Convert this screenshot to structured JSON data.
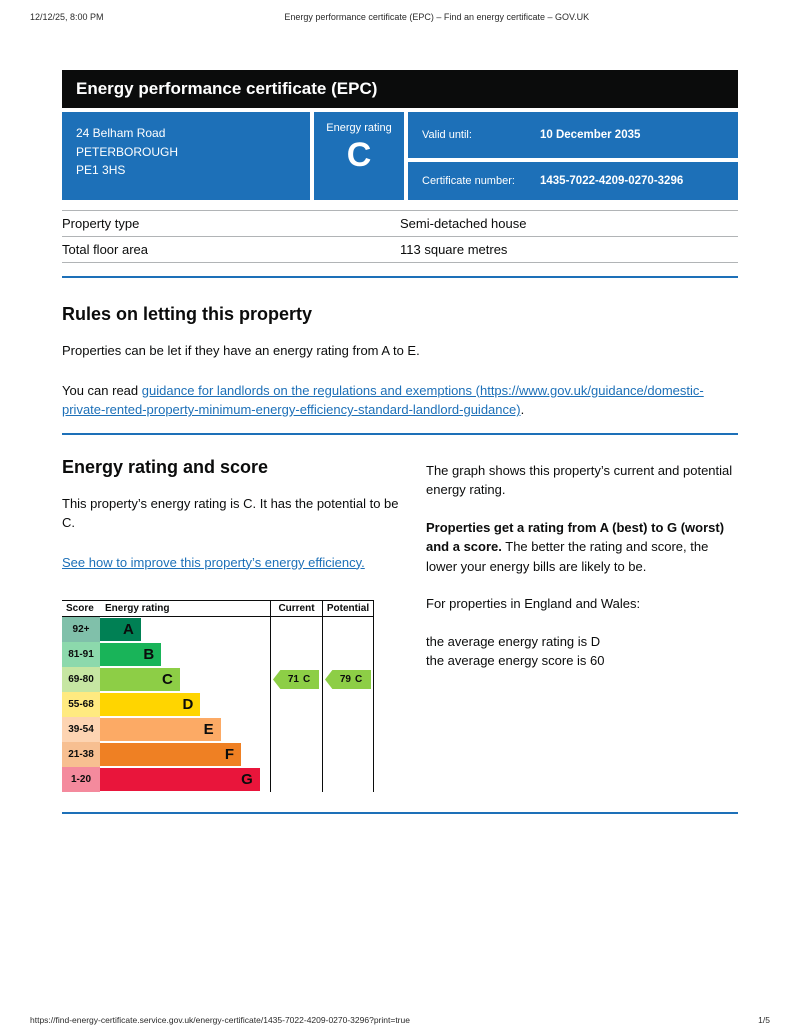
{
  "print_header": {
    "datetime": "12/12/25, 8:00 PM",
    "title": "Energy performance certificate (EPC) – Find an energy certificate – GOV.UK"
  },
  "banner": {
    "title": "Energy performance certificate (EPC)"
  },
  "summary": {
    "accent_color": "#1d70b8",
    "address_lines": [
      "24 Belham Road",
      "PETERBOROUGH",
      "PE1 3HS"
    ],
    "energy_rating_label": "Energy rating",
    "energy_rating_value": "C",
    "valid_until_label": "Valid until:",
    "valid_until_value": "10 December 2035",
    "certificate_number_label": "Certificate number:",
    "certificate_number_value": "1435-7022-4209-0270-3296"
  },
  "property_table": {
    "rows": [
      {
        "label": "Property type",
        "value": "Semi-detached house"
      },
      {
        "label": "Total floor area",
        "value": "113 square metres"
      }
    ]
  },
  "letting_section": {
    "heading": "Rules on letting this property",
    "paragraph": "Properties can be let if they have an energy rating from A to E.",
    "link_prefix": "You can read ",
    "link_text": "guidance for landlords on the regulations and exemptions (https://www.gov.uk/guidance/domestic-private-rented-property-minimum-energy-efficiency-standard-landlord-guidance)",
    "link_suffix": "."
  },
  "rating_section": {
    "heading": "Energy rating and score",
    "paragraph": "This property’s energy rating is C. It has the potential to be C.",
    "improve_link": "See how to improve this property’s energy efficiency.",
    "right_para1": "The graph shows this property’s current and potential energy rating.",
    "right_para2_bold": "Properties get a rating from A (best) to G (worst) and a score.",
    "right_para2_rest": " The better the rating and score, the lower your energy bills are likely to be.",
    "right_para3": "For properties in England and Wales:",
    "right_para4_line1": "the average energy rating is D",
    "right_para4_line2": "the average energy score is 60"
  },
  "chart_data": {
    "type": "epc-rating-chart",
    "headers": [
      "Score",
      "Energy rating",
      "Current",
      "Potential"
    ],
    "bands": [
      {
        "score": "92+",
        "letter": "A",
        "color": "#008054",
        "tint": "#80c0aa",
        "width_pct": 24
      },
      {
        "score": "81-91",
        "letter": "B",
        "color": "#19b459",
        "tint": "#8cd9ac",
        "width_pct": 36
      },
      {
        "score": "69-80",
        "letter": "C",
        "color": "#8dce46",
        "tint": "#c6e6a2",
        "width_pct": 47
      },
      {
        "score": "55-68",
        "letter": "D",
        "color": "#ffd500",
        "tint": "#ffea80",
        "width_pct": 59
      },
      {
        "score": "39-54",
        "letter": "E",
        "color": "#fcaa65",
        "tint": "#fdd4b2",
        "width_pct": 71
      },
      {
        "score": "21-38",
        "letter": "F",
        "color": "#ef8023",
        "tint": "#f7bf91",
        "width_pct": 83
      },
      {
        "score": "1-20",
        "letter": "G",
        "color": "#e9153b",
        "tint": "#f48a9d",
        "width_pct": 94
      }
    ],
    "current": {
      "value": 71,
      "letter": "C",
      "label_value": "71",
      "label_letter": "C",
      "color": "#8dce46"
    },
    "potential": {
      "value": 79,
      "letter": "C",
      "label_value": "79",
      "label_letter": "C",
      "color": "#8dce46"
    }
  },
  "footer": {
    "url": "https://find-energy-certificate.service.gov.uk/energy-certificate/1435-7022-4209-0270-3296?print=true",
    "page": "1/5"
  }
}
